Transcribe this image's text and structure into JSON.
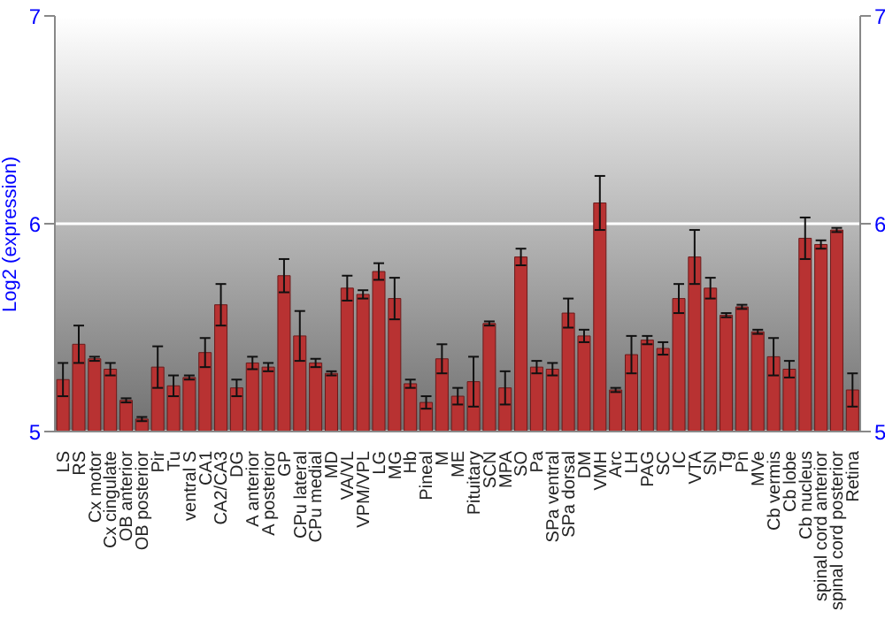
{
  "chart_data": {
    "type": "bar",
    "ylabel": "Log2 (expression)",
    "categories": [
      "LS",
      "RS",
      "Cx motor",
      "Cx cingulate",
      "OB anterior",
      "OB posterior",
      "Pir",
      "Tu",
      "ventral S",
      "CA1",
      "CA2/CA3",
      "DG",
      "A anterior",
      "A posterior",
      "GP",
      "CPu lateral",
      "CPu medial",
      "MD",
      "VA/VL",
      "VPM/VPL",
      "LG",
      "MG",
      "Hb",
      "Pineal",
      "M",
      "ME",
      "Pituitary",
      "SCN",
      "MPA",
      "SO",
      "Pa",
      "SPa ventral",
      "SPa dorsal",
      "DM",
      "VMH",
      "Arc",
      "LH",
      "PAG",
      "SC",
      "IC",
      "VTA",
      "SN",
      "Tg",
      "Pn",
      "MVe",
      "Cb vermis",
      "Cb lobe",
      "Cb nucleus",
      "spinal cord anterior",
      "spinal cord posterior",
      "Retina"
    ],
    "values": [
      5.25,
      5.42,
      5.35,
      5.3,
      5.15,
      5.06,
      5.31,
      5.22,
      5.26,
      5.38,
      5.61,
      5.21,
      5.33,
      5.31,
      5.75,
      5.46,
      5.33,
      5.28,
      5.69,
      5.66,
      5.77,
      5.64,
      5.23,
      5.14,
      5.35,
      5.17,
      5.24,
      5.52,
      5.21,
      5.84,
      5.31,
      5.3,
      5.57,
      5.46,
      6.1,
      5.2,
      5.37,
      5.44,
      5.4,
      5.64,
      5.84,
      5.69,
      5.56,
      5.6,
      5.48,
      5.36,
      5.3,
      5.93,
      5.9,
      5.97,
      5.2
    ],
    "errors": [
      0.08,
      0.09,
      0.01,
      0.03,
      0.01,
      0.01,
      0.1,
      0.05,
      0.01,
      0.07,
      0.1,
      0.04,
      0.03,
      0.02,
      0.08,
      0.12,
      0.02,
      0.01,
      0.06,
      0.02,
      0.04,
      0.1,
      0.02,
      0.03,
      0.07,
      0.04,
      0.12,
      0.01,
      0.08,
      0.04,
      0.03,
      0.03,
      0.07,
      0.03,
      0.13,
      0.01,
      0.09,
      0.02,
      0.03,
      0.07,
      0.13,
      0.05,
      0.01,
      0.01,
      0.01,
      0.09,
      0.04,
      0.1,
      0.02,
      0.01,
      0.08
    ],
    "color": "#b83232",
    "ylim": [
      5,
      7
    ],
    "yticks": [
      5,
      6,
      7
    ],
    "y2lim": [
      5,
      7
    ],
    "y2ticks": [
      5,
      6,
      7
    ],
    "grid": "y"
  }
}
